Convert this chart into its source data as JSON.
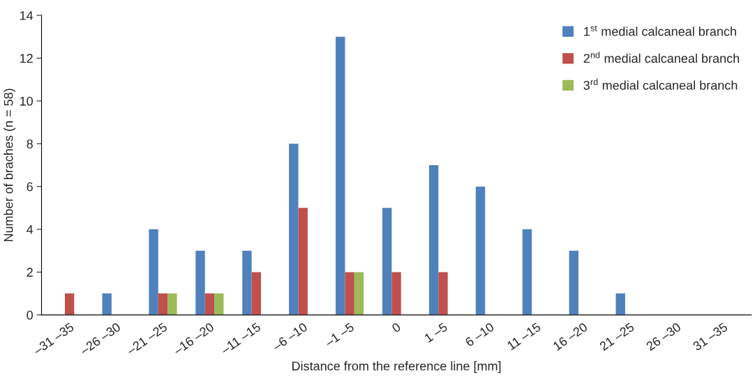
{
  "chart_data": {
    "type": "bar",
    "xlabel": "Distance from the reference line [mm]",
    "ylabel": "Number of braches (n = 58)",
    "categories": [
      "–31 –35",
      "–26 –30",
      "–21 –25",
      "–16 –20",
      "–11 –15",
      "–6 –10",
      "–1 –5",
      "0",
      "1 –5",
      "6 –10",
      "11 –15",
      "16 –20",
      "21 –25",
      "26 –30",
      "31 –35"
    ],
    "series": [
      {
        "name": "1$^{st}$ medial calcaneal branch",
        "color": "#4f81bd",
        "values": [
          0,
          1,
          4,
          3,
          3,
          8,
          13,
          5,
          7,
          6,
          4,
          3,
          1,
          0,
          0
        ]
      },
      {
        "name": "2$^{nd}$ medial calcaneal branch",
        "color": "#c0504d",
        "values": [
          1,
          0,
          1,
          1,
          2,
          5,
          2,
          2,
          2,
          0,
          0,
          0,
          0,
          0,
          0
        ]
      },
      {
        "name": "3$^{rd}$ medial calcaneal branch",
        "color": "#9bbb59",
        "values": [
          0,
          0,
          1,
          1,
          0,
          0,
          2,
          0,
          0,
          0,
          0,
          0,
          0,
          0,
          0
        ]
      }
    ],
    "ylim": [
      0,
      14
    ],
    "yticks": [
      0,
      2,
      4,
      6,
      8,
      10,
      12,
      14
    ],
    "grid": false,
    "legend": "top right"
  }
}
